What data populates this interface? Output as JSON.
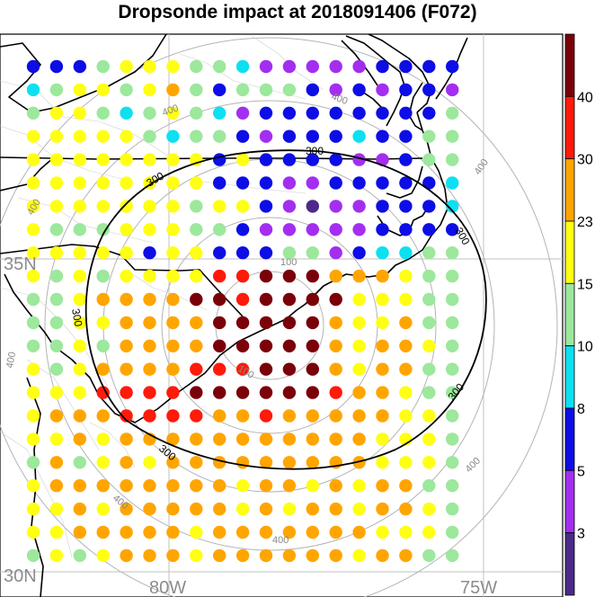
{
  "title": "Dropsonde impact at 2018091406 (F072)",
  "map": {
    "lat_labels": [
      "35N",
      "30N"
    ],
    "lon_labels": [
      "80W",
      "75W"
    ],
    "land_color": "#ffffff",
    "border_color": "#000000"
  },
  "range_rings": {
    "labels": [
      "100",
      "100",
      "400",
      "400",
      "400",
      "400",
      "400",
      "400",
      "400",
      "400"
    ],
    "color": "#b4b4b4"
  },
  "contour_300": {
    "labels": [
      "300",
      "300",
      "300",
      "300",
      "300",
      "300"
    ],
    "color": "#000000"
  },
  "colorbar": {
    "labels": [
      "40",
      "30",
      "23",
      "15",
      "10",
      "8",
      "5",
      "3"
    ],
    "colors": [
      "#4b2a8a",
      "#a32ef0",
      "#0d0de6",
      "#0de0f0",
      "#9ce89c",
      "#ffff12",
      "#ffa500",
      "#ff1a0a",
      "#7a0009"
    ]
  },
  "impact_grid": {
    "legend": "0=dark purple,1=purple,2=blue,3=cyan,4=light green,5=yellow,6=orange,7=red,8=dark red",
    "rows": [
      "2224555443111112222",
      "3455456424442121221",
      "4554345431222222224",
      "5555543442122232244",
      "5555555525222211244",
      "5555555522211222223",
      "5555555455210112223",
      "5444555442111112222",
      "5555525522244123344",
      "5454555577888666544",
      "4456666887888855544",
      "4455666688888655644",
      "4454666688888656654",
      "5456666777888656644",
      "5557777888888766544",
      "5666777766766666554",
      "5565666666666665554",
      "4645656666666665554",
      "5666666665665656644",
      "5565666665656656654",
      "5566666566666665554",
      "4545666566666656644"
    ]
  },
  "chart_data": {
    "type": "scatter",
    "title": "Dropsonde impact at 2018091406 (F072)",
    "x_ticks": [
      "80W",
      "75W"
    ],
    "y_ticks": [
      "35N",
      "30N"
    ],
    "colorbar_levels": [
      3,
      5,
      8,
      10,
      15,
      23,
      30,
      40
    ]
  }
}
